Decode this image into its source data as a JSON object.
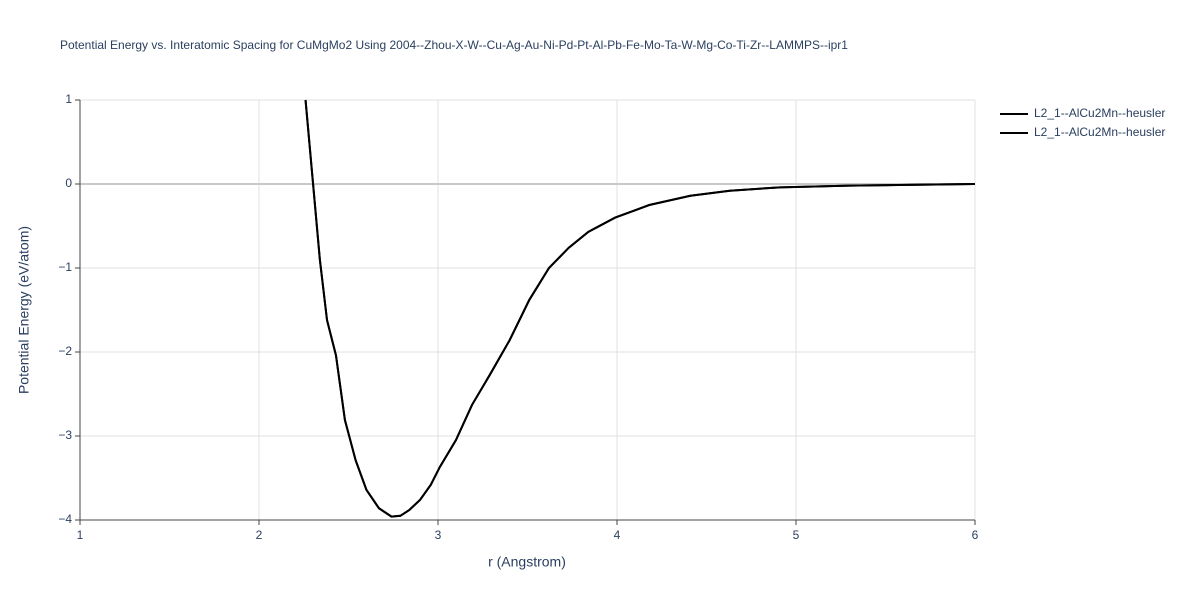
{
  "chart_data": {
    "type": "line",
    "title": "Potential Energy vs. Interatomic Spacing for CuMgMo2 Using 2004--Zhou-X-W--Cu-Ag-Au-Ni-Pd-Pt-Al-Pb-Fe-Mo-Ta-W-Mg-Co-Ti-Zr--LAMMPS--ipr1",
    "x_label": "r (Angstrom)",
    "y_label": "Potential Energy (eV/atom)",
    "x": [
      2.26,
      2.3,
      2.34,
      2.38,
      2.43,
      2.48,
      2.54,
      2.6,
      2.67,
      2.74,
      2.79,
      2.84,
      2.9,
      2.96,
      3.01,
      3.1,
      3.19,
      3.29,
      3.4,
      3.51,
      3.62,
      3.73,
      3.84,
      3.99,
      4.18,
      4.41,
      4.63,
      4.91,
      5.3,
      6.0
    ],
    "series": [
      {
        "name": "L2_1--AlCu2Mn--heusler",
        "color": "#000000",
        "values": [
          1.0,
          0.05,
          -0.9,
          -1.62,
          -2.04,
          -2.81,
          -3.29,
          -3.64,
          -3.86,
          -3.96,
          -3.95,
          -3.88,
          -3.76,
          -3.58,
          -3.37,
          -3.05,
          -2.63,
          -2.27,
          -1.86,
          -1.38,
          -1.0,
          -0.76,
          -0.57,
          -0.4,
          -0.25,
          -0.14,
          -0.08,
          -0.04,
          -0.02,
          0.0
        ]
      },
      {
        "name": "L2_1--AlCu2Mn--heusler",
        "color": "#000000",
        "values": [
          1.0,
          0.05,
          -0.9,
          -1.62,
          -2.04,
          -2.81,
          -3.29,
          -3.64,
          -3.86,
          -3.96,
          -3.95,
          -3.88,
          -3.76,
          -3.58,
          -3.37,
          -3.05,
          -2.63,
          -2.27,
          -1.86,
          -1.38,
          -1.0,
          -0.76,
          -0.57,
          -0.4,
          -0.25,
          -0.14,
          -0.08,
          -0.04,
          -0.02,
          0.0
        ]
      }
    ],
    "xlim": [
      1,
      6
    ],
    "xticks": [
      1,
      2,
      3,
      4,
      5,
      6
    ],
    "ylim": [
      -4,
      1
    ],
    "yticks": [
      {
        "value": -4,
        "label": "−4"
      },
      {
        "value": -3,
        "label": "−3"
      },
      {
        "value": -2,
        "label": "−2"
      },
      {
        "value": -1,
        "label": "−1"
      },
      0,
      1
    ],
    "grid": true
  }
}
